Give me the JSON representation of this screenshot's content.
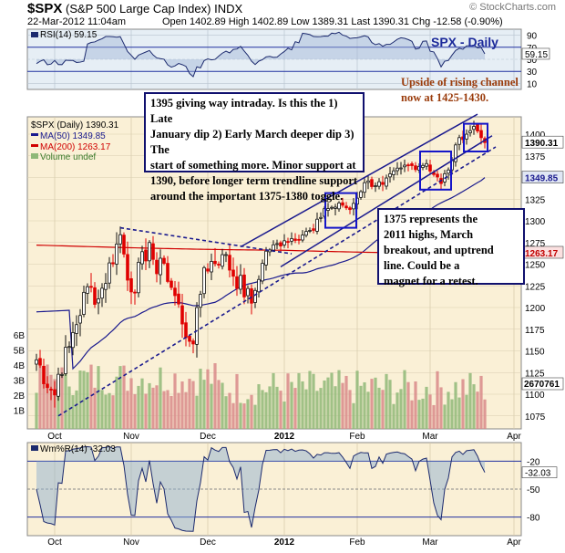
{
  "header": {
    "symbol": "$SPX",
    "name": "(S&P 500 Large Cap Index)",
    "exchange": "INDX",
    "credit": "© StockCharts.com",
    "date": "22-Mar-2012 11:04am",
    "ohlc_text": "Open 1402.89  High 1402.89  Low 1389.31  Last 1390.31  Chg -12.58 (-0.90%)"
  },
  "rsi_panel": {
    "legend": "RSI(14) 59.15",
    "title": "SPX - Daily",
    "ticks": [
      "90",
      "70",
      "50",
      "30",
      "10"
    ],
    "last_value": "59.15",
    "note_lines": [
      "Upside of rising channel",
      "now at 1425-1430."
    ]
  },
  "price_panel": {
    "legend": {
      "price": "$SPX (Daily) 1390.31",
      "ma50": "MA(50) 1349.85",
      "ma200": "MA(200) 1263.17",
      "volume": "Volume undef"
    },
    "y_ticks": [
      "1400",
      "1375",
      "1350",
      "1325",
      "1300",
      "1275",
      "1250",
      "1225",
      "1200",
      "1175",
      "1150",
      "1125",
      "1100",
      "1075"
    ],
    "vol_ticks": [
      "6B",
      "5B",
      "4B",
      "3B",
      "2B",
      "1B"
    ],
    "tags": {
      "last": "1390.31",
      "ma50": "1349.85",
      "ma200": "1263.17",
      "vol": "2670761"
    },
    "note1_lines": [
      "1395 giving way intraday. Is this the 1) Late",
      "January dip 2) Early March deeper dip 3) The",
      "start of something more. Minor support at",
      "1390, before longer term trendline support",
      "around the important 1375-1380 toggle."
    ],
    "note2_lines": [
      "1375 represents the",
      "2011 highs, March",
      "breakout, and uptrend",
      "line. Could be a",
      "magnet for a retest."
    ]
  },
  "x_labels": [
    "Oct",
    "Nov",
    "Dec",
    "2012",
    "Feb",
    "Mar",
    "Apr"
  ],
  "wm_panel": {
    "legend": "Wm%R(14) -32.03",
    "ticks": [
      "-20",
      "-50",
      "-80"
    ],
    "last_value": "-32.03"
  },
  "colors": {
    "up": "#101010",
    "down": "#e00000",
    "ma50": "#1a1a8e",
    "ma200": "#d00000",
    "panel_bg": "#faf0d6",
    "rsi_bg": "#e6eef5",
    "vol_up": "#8fb878",
    "vol_down": "#d88a8a",
    "note_border": "#10106e",
    "orange_text": "#9a3c0c"
  },
  "chart_data": {
    "type": "candlestick",
    "symbol": "$SPX",
    "ylim": [
      1060,
      1420
    ],
    "anchors": [
      {
        "date": "2011-10-03",
        "close": 1099
      },
      {
        "date": "2011-10-04",
        "close": 1123
      },
      {
        "date": "2011-10-07",
        "close": 1155
      },
      {
        "date": "2011-10-14",
        "close": 1224
      },
      {
        "date": "2011-10-19",
        "close": 1210
      },
      {
        "date": "2011-10-27",
        "close": 1284
      },
      {
        "date": "2011-11-01",
        "close": 1218
      },
      {
        "date": "2011-11-08",
        "close": 1275
      },
      {
        "date": "2011-11-10",
        "close": 1239
      },
      {
        "date": "2011-11-14",
        "close": 1251
      },
      {
        "date": "2011-11-23",
        "close": 1161
      },
      {
        "date": "2011-11-25",
        "close": 1158
      },
      {
        "date": "2011-11-30",
        "close": 1246
      },
      {
        "date": "2011-12-07",
        "close": 1261
      },
      {
        "date": "2011-12-19",
        "close": 1205
      },
      {
        "date": "2011-12-23",
        "close": 1265
      },
      {
        "date": "2012-01-03",
        "close": 1277
      },
      {
        "date": "2012-01-13",
        "close": 1289
      },
      {
        "date": "2012-01-19",
        "close": 1314
      },
      {
        "date": "2012-01-26",
        "close": 1318
      },
      {
        "date": "2012-01-30",
        "close": 1313
      },
      {
        "date": "2012-02-03",
        "close": 1344
      },
      {
        "date": "2012-02-10",
        "close": 1342
      },
      {
        "date": "2012-02-17",
        "close": 1361
      },
      {
        "date": "2012-02-29",
        "close": 1366
      },
      {
        "date": "2012-03-06",
        "close": 1343
      },
      {
        "date": "2012-03-09",
        "close": 1370
      },
      {
        "date": "2012-03-13",
        "close": 1396
      },
      {
        "date": "2012-03-16",
        "close": 1404
      },
      {
        "date": "2012-03-19",
        "close": 1409
      },
      {
        "date": "2012-03-22",
        "close": 1390.31
      }
    ],
    "series": [
      {
        "name": "MA(50)",
        "last": 1349.85
      },
      {
        "name": "MA(200)",
        "last": 1263.17
      }
    ],
    "indicators": {
      "RSI(14)": 59.15,
      "Wm%R(14)": -32.03
    }
  }
}
